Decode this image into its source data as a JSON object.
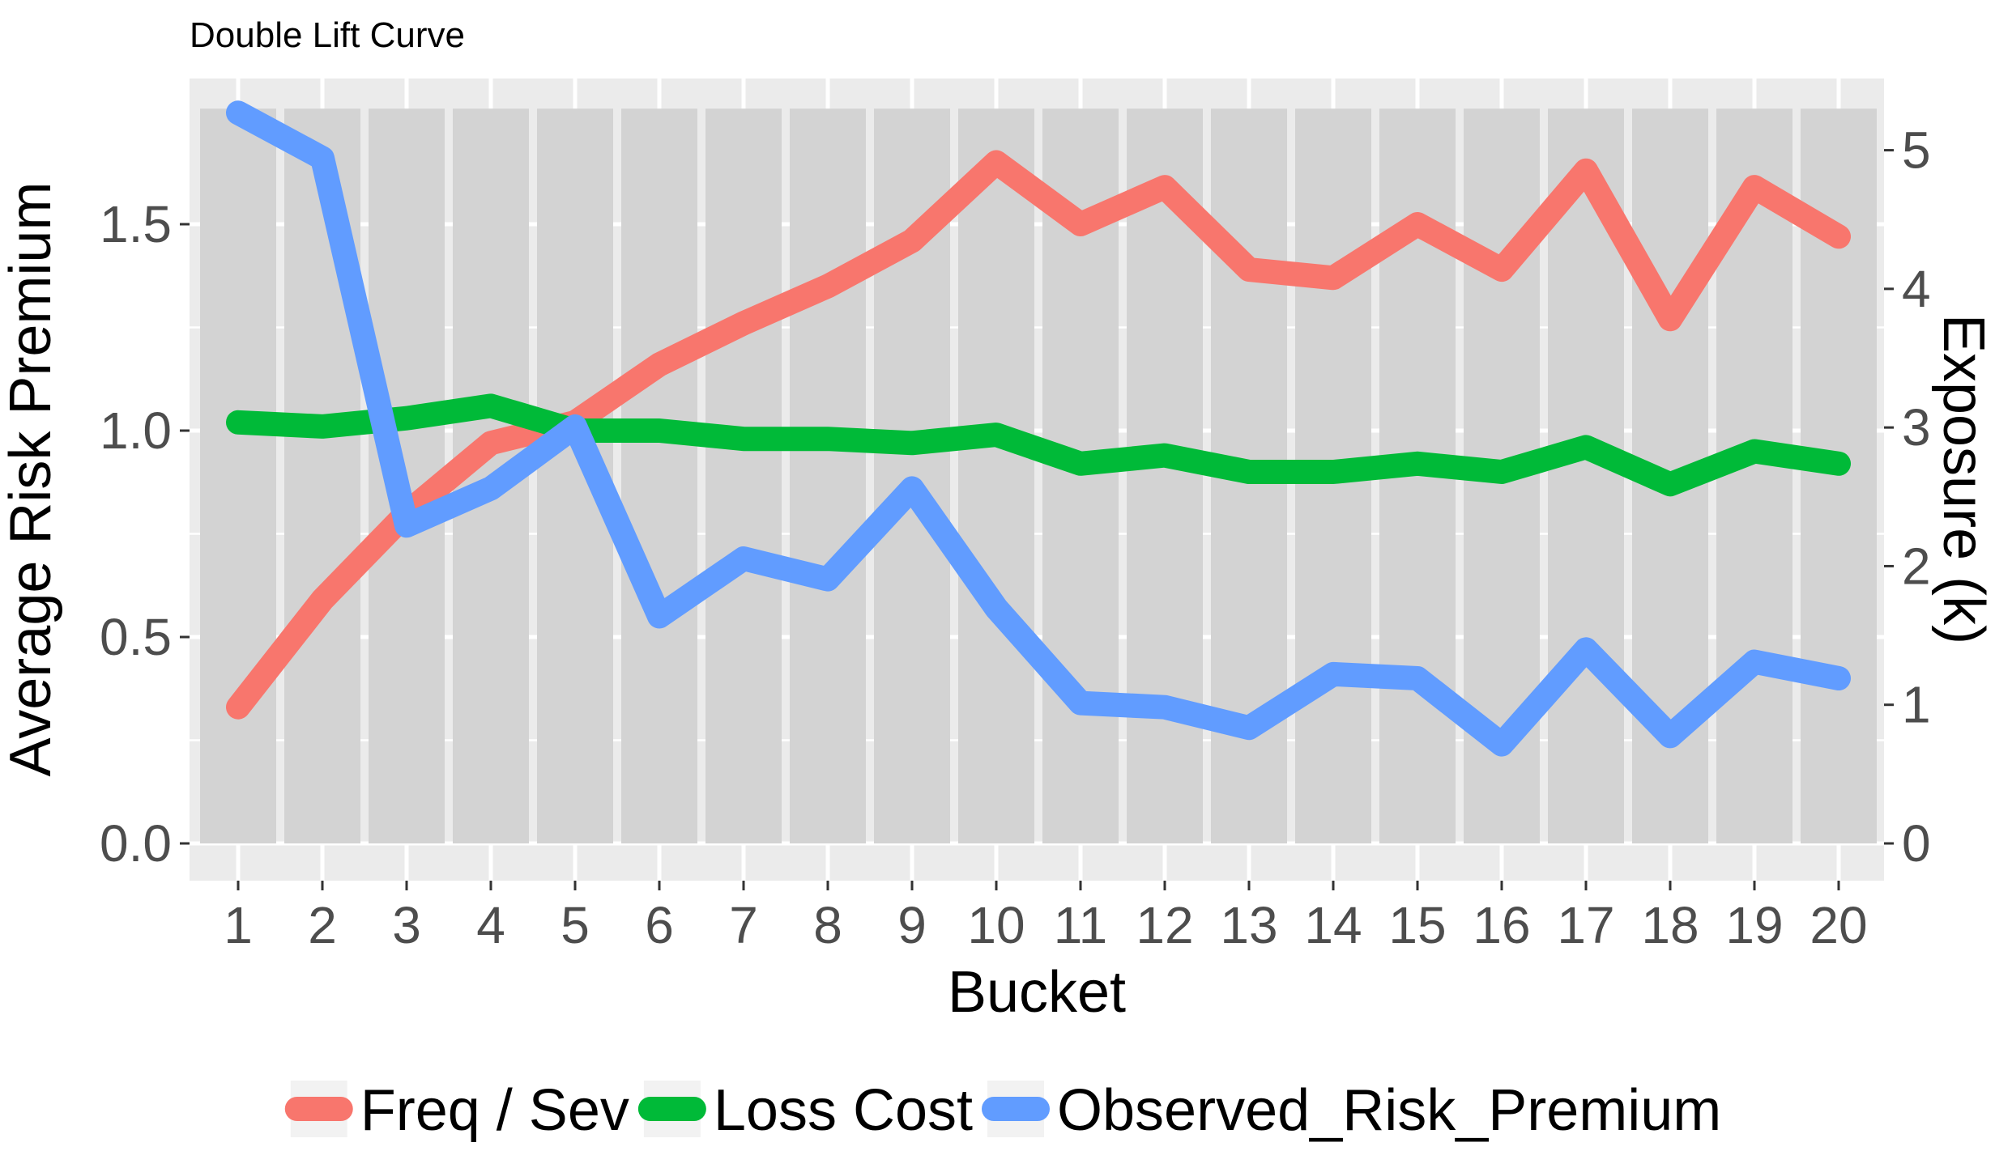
{
  "chart_data": {
    "type": "line",
    "title": "Double Lift Curve",
    "xlabel": "Bucket",
    "ylabel": "Average Risk Premium",
    "y2label": "Exposure (k)",
    "categories": [
      "1",
      "2",
      "3",
      "4",
      "5",
      "6",
      "7",
      "8",
      "9",
      "10",
      "11",
      "12",
      "13",
      "14",
      "15",
      "16",
      "17",
      "18",
      "19",
      "20"
    ],
    "ylim": [
      0,
      1.78
    ],
    "yticks": [
      "0.0",
      "0.5",
      "1.0",
      "1.5"
    ],
    "y2lim": [
      0,
      5.3
    ],
    "y2ticks": [
      "0",
      "1",
      "2",
      "3",
      "4",
      "5"
    ],
    "exposure": [
      5.3,
      5.3,
      5.3,
      5.3,
      5.3,
      5.3,
      5.3,
      5.3,
      5.3,
      5.3,
      5.3,
      5.3,
      5.3,
      5.3,
      5.3,
      5.3,
      5.3,
      5.3,
      5.3,
      5.3
    ],
    "series": [
      {
        "name": "Freq / Sev",
        "color": "#F8766D",
        "values": [
          0.33,
          0.59,
          0.8,
          0.97,
          1.02,
          1.16,
          1.26,
          1.35,
          1.46,
          1.65,
          1.5,
          1.59,
          1.39,
          1.37,
          1.5,
          1.39,
          1.63,
          1.27,
          1.59,
          1.47
        ]
      },
      {
        "name": "Loss Cost",
        "color": "#00BA38",
        "values": [
          1.02,
          1.01,
          1.03,
          1.06,
          1.0,
          1.0,
          0.98,
          0.98,
          0.97,
          0.99,
          0.92,
          0.94,
          0.9,
          0.9,
          0.92,
          0.9,
          0.96,
          0.87,
          0.95,
          0.92
        ]
      },
      {
        "name": "Observed_Risk_Premium",
        "color": "#619CFF",
        "values": [
          1.77,
          1.66,
          0.77,
          0.86,
          1.01,
          0.55,
          0.69,
          0.64,
          0.86,
          0.57,
          0.34,
          0.33,
          0.28,
          0.41,
          0.4,
          0.24,
          0.47,
          0.26,
          0.44,
          0.4
        ]
      }
    ],
    "legend_position": "bottom",
    "grid": true
  }
}
